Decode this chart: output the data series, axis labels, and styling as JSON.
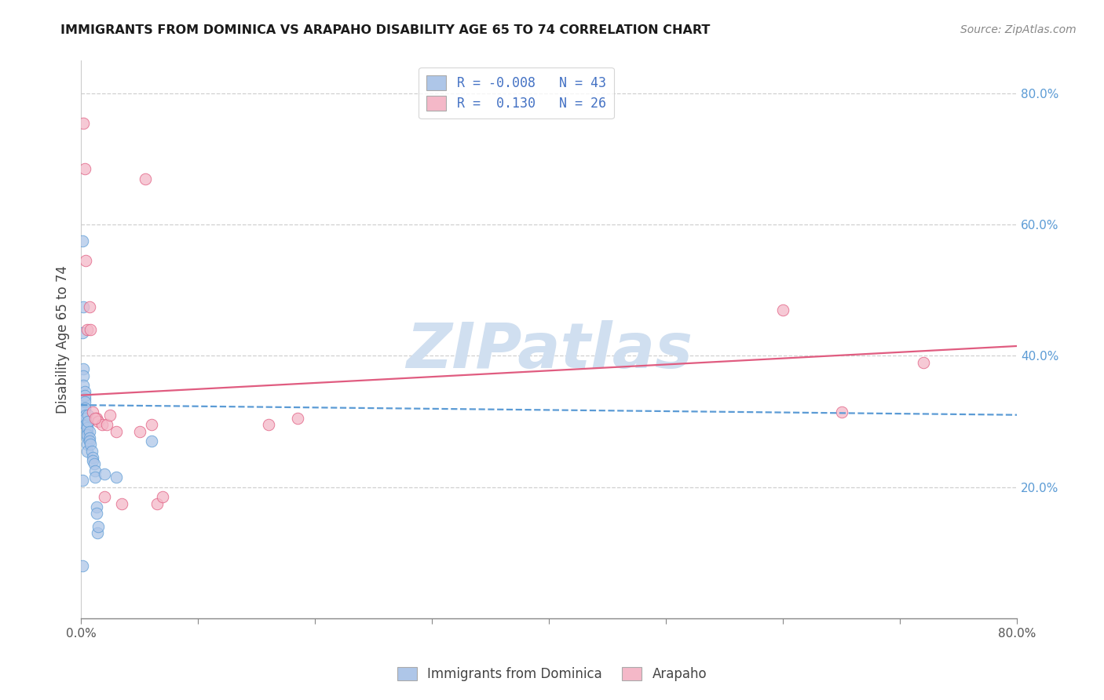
{
  "title": "IMMIGRANTS FROM DOMINICA VS ARAPAHO DISABILITY AGE 65 TO 74 CORRELATION CHART",
  "source": "Source: ZipAtlas.com",
  "ylabel": "Disability Age 65 to 74",
  "legend_label1": "Immigrants from Dominica",
  "legend_label2": "Arapaho",
  "R1": -0.008,
  "N1": 43,
  "R2": 0.13,
  "N2": 26,
  "color1": "#aec6e8",
  "color2": "#f4b8c8",
  "trend_color1": "#5b9bd5",
  "trend_color2": "#e05c80",
  "xlim": [
    0.0,
    0.8
  ],
  "ylim": [
    0.0,
    0.85
  ],
  "xticks": [
    0.0,
    0.1,
    0.2,
    0.3,
    0.4,
    0.5,
    0.6,
    0.7,
    0.8
  ],
  "yticks_right": [
    0.2,
    0.4,
    0.6,
    0.8
  ],
  "scatter1_x": [
    0.001,
    0.001,
    0.001,
    0.002,
    0.002,
    0.002,
    0.002,
    0.003,
    0.003,
    0.003,
    0.003,
    0.003,
    0.003,
    0.004,
    0.004,
    0.004,
    0.005,
    0.005,
    0.005,
    0.005,
    0.005,
    0.005,
    0.005,
    0.006,
    0.006,
    0.007,
    0.007,
    0.007,
    0.008,
    0.009,
    0.01,
    0.01,
    0.011,
    0.012,
    0.012,
    0.013,
    0.013,
    0.014,
    0.015,
    0.02,
    0.03,
    0.06,
    0.001
  ],
  "scatter1_y": [
    0.575,
    0.08,
    0.21,
    0.475,
    0.38,
    0.37,
    0.355,
    0.345,
    0.335,
    0.32,
    0.34,
    0.33,
    0.32,
    0.31,
    0.305,
    0.295,
    0.285,
    0.275,
    0.265,
    0.255,
    0.295,
    0.29,
    0.28,
    0.31,
    0.3,
    0.285,
    0.275,
    0.27,
    0.265,
    0.255,
    0.245,
    0.24,
    0.235,
    0.225,
    0.215,
    0.17,
    0.16,
    0.13,
    0.14,
    0.22,
    0.215,
    0.27,
    0.435
  ],
  "scatter2_x": [
    0.002,
    0.003,
    0.005,
    0.007,
    0.01,
    0.013,
    0.015,
    0.018,
    0.02,
    0.022,
    0.025,
    0.03,
    0.035,
    0.05,
    0.055,
    0.06,
    0.065,
    0.07,
    0.16,
    0.185,
    0.6,
    0.65,
    0.72,
    0.004,
    0.008,
    0.012
  ],
  "scatter2_y": [
    0.755,
    0.685,
    0.44,
    0.475,
    0.315,
    0.305,
    0.3,
    0.295,
    0.185,
    0.295,
    0.31,
    0.285,
    0.175,
    0.285,
    0.67,
    0.295,
    0.175,
    0.185,
    0.295,
    0.305,
    0.47,
    0.315,
    0.39,
    0.545,
    0.44,
    0.305
  ],
  "trend1_x": [
    0.0,
    0.8
  ],
  "trend1_y": [
    0.325,
    0.31
  ],
  "trend2_x": [
    0.0,
    0.8
  ],
  "trend2_y": [
    0.34,
    0.415
  ],
  "watermark": "ZIPatlas",
  "watermark_color": "#d0dff0",
  "background_color": "#ffffff",
  "grid_color": "#d0d0d0"
}
